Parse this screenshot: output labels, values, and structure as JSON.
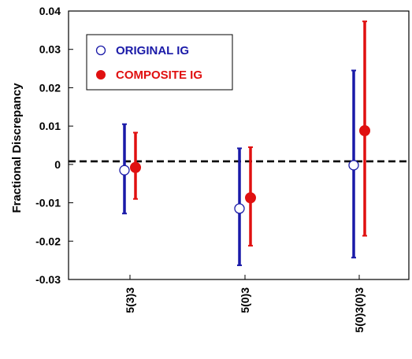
{
  "chart_data": {
    "type": "scatter",
    "subtype": "error-bar",
    "ylabel": "Fractional Discrepancy",
    "xlabel": "",
    "ylim": [
      -0.03,
      0.04
    ],
    "yticks": [
      0.04,
      0.03,
      0.02,
      0.01,
      0,
      -0.01,
      -0.02,
      -0.03
    ],
    "ytick_labels": [
      "0.04",
      "0.03",
      "0.02",
      "0.01",
      "0",
      "-0.01",
      "-0.02",
      "-0.03"
    ],
    "categories": [
      "5(3)3",
      "5(0)3",
      "5(0)3(0)3"
    ],
    "reference_line": {
      "y": 0.0008,
      "style": "dashed",
      "color": "#000000"
    },
    "grid": false,
    "legend_position": "top-left",
    "series": [
      {
        "name": "ORIGINAL IG",
        "marker": "open-circle",
        "color": "#1a1aa8",
        "points": [
          {
            "category": "5(3)3",
            "y": -0.0015,
            "low": -0.0128,
            "high": 0.0105
          },
          {
            "category": "5(0)3",
            "y": -0.0115,
            "low": -0.0263,
            "high": 0.0042
          },
          {
            "category": "5(0)3(0)3",
            "y": -0.0002,
            "low": -0.0243,
            "high": 0.0245
          }
        ]
      },
      {
        "name": "COMPOSITE IG",
        "marker": "filled-circle",
        "color": "#e01010",
        "points": [
          {
            "category": "5(3)3",
            "y": -0.0008,
            "low": -0.009,
            "high": 0.0083
          },
          {
            "category": "5(0)3",
            "y": -0.0087,
            "low": -0.0212,
            "high": 0.0045
          },
          {
            "category": "5(0)3(0)3",
            "y": 0.0088,
            "low": -0.0186,
            "high": 0.0373
          }
        ]
      }
    ]
  }
}
